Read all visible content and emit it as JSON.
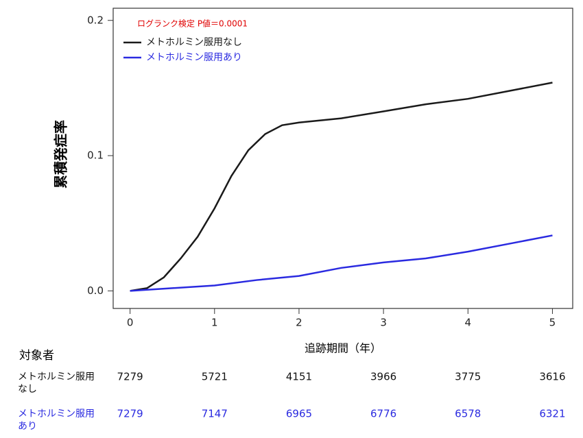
{
  "chart_data": {
    "type": "line",
    "annotation": "ログランク検定 P値＝0.0001",
    "ylabel": "累積発症率",
    "xlabel": "追跡期間（年）",
    "xlim": [
      -0.2,
      5.24
    ],
    "ylim": [
      -0.013,
      0.209
    ],
    "xticks": [
      0,
      1,
      2,
      3,
      4,
      5
    ],
    "yticks": [
      {
        "value": 0,
        "label": "0.0"
      },
      {
        "value": 0.1,
        "label": "0.1"
      },
      {
        "value": 0.2,
        "label": "0.2"
      }
    ],
    "legend": "upper left",
    "series": [
      {
        "name": "メトホルミン服用なし",
        "color": "#1a1a1a",
        "x": [
          0,
          0.2,
          0.4,
          0.6,
          0.8,
          1.0,
          1.2,
          1.4,
          1.6,
          1.8,
          2.0,
          2.5,
          3.0,
          3.5,
          4.0,
          4.5,
          5.0
        ],
        "values": [
          0,
          0.002,
          0.01,
          0.024,
          0.04,
          0.061,
          0.085,
          0.104,
          0.116,
          0.1225,
          0.1245,
          0.1276,
          0.1327,
          0.138,
          0.142,
          0.148,
          0.154
        ]
      },
      {
        "name": "メトホルミン服用あり",
        "color": "#2a2ae0",
        "x": [
          0,
          0.5,
          1.0,
          1.5,
          2.0,
          2.5,
          3.0,
          3.5,
          4.0,
          4.5,
          5.0
        ],
        "values": [
          0,
          0.002,
          0.004,
          0.008,
          0.011,
          0.017,
          0.021,
          0.024,
          0.029,
          0.035,
          0.041
        ]
      }
    ]
  },
  "risk_table": {
    "title": "対象者",
    "rows": [
      {
        "label": "メトホルミン服用なし",
        "color": "#111111",
        "values": [
          7279,
          5721,
          4151,
          3966,
          3775,
          3616
        ]
      },
      {
        "label": "メトホルミン服用あり",
        "color": "#2a2ae0",
        "values": [
          7279,
          7147,
          6965,
          6776,
          6578,
          6321
        ]
      }
    ]
  }
}
